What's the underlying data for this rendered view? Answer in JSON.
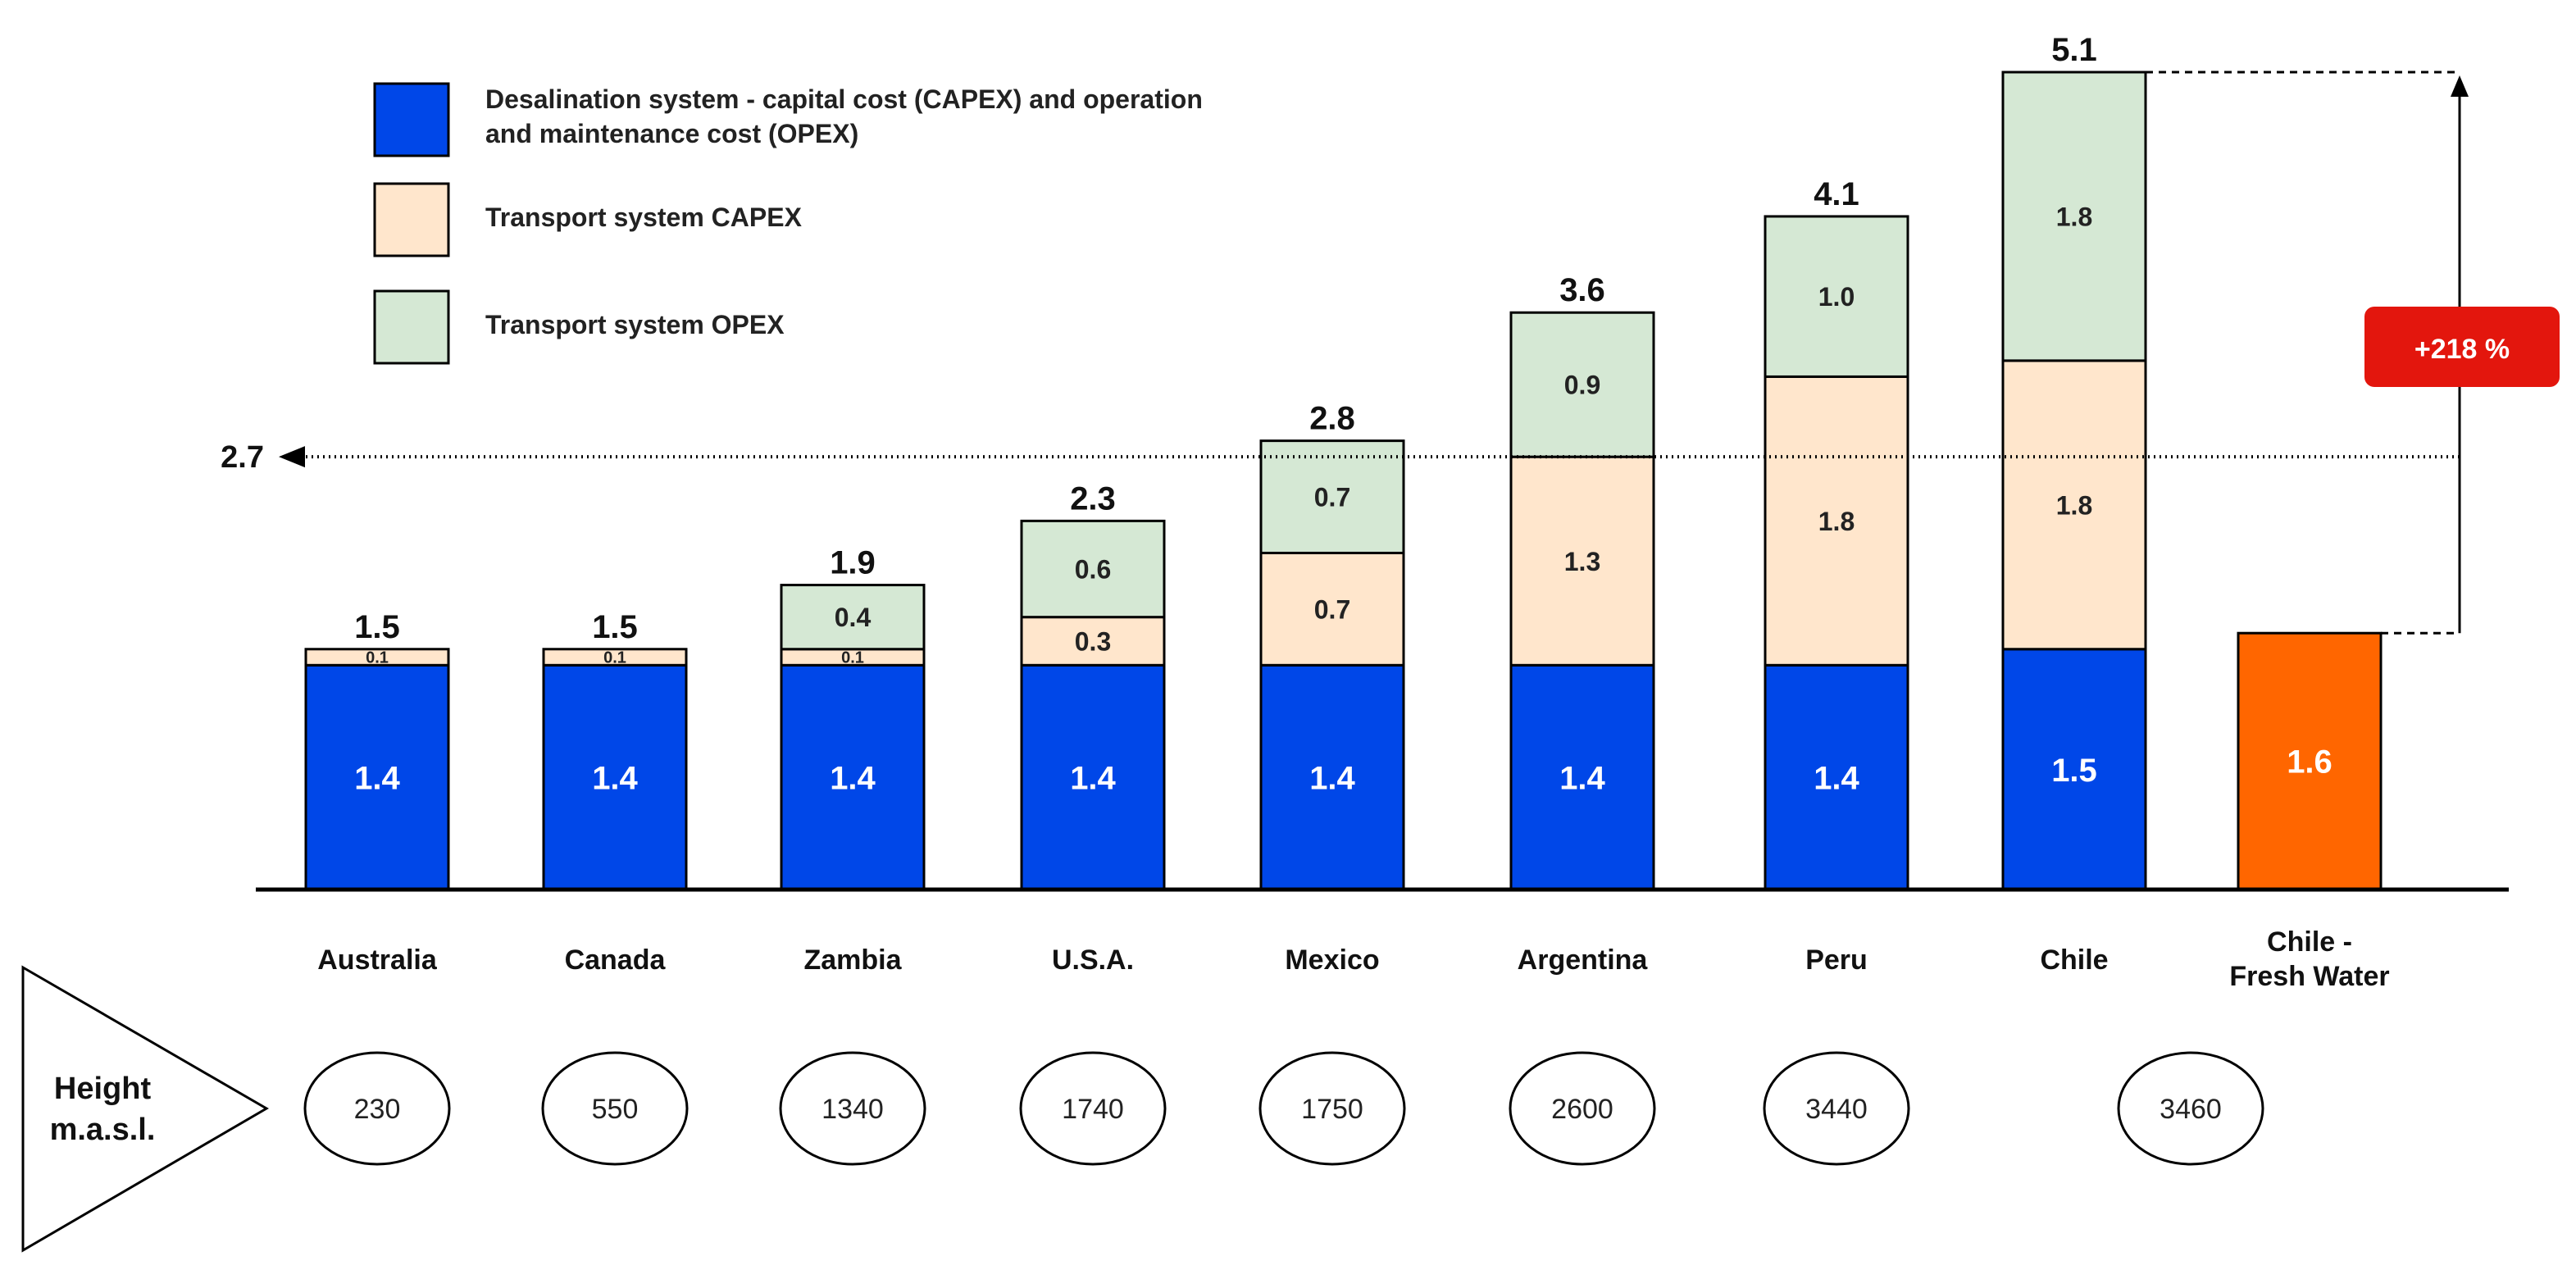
{
  "chart_data": {
    "type": "bar",
    "stacked": true,
    "title": "",
    "xlabel": "",
    "ylabel": "",
    "ylim": [
      0,
      5.1
    ],
    "grid": false,
    "legend_position": "top-left",
    "categories": [
      "Australia",
      "Canada",
      "Zambia",
      "U.S.A.",
      "Mexico",
      "Argentina",
      "Peru",
      "Chile"
    ],
    "series": [
      {
        "name": "Desalination system - capital cost (CAPEX) and operation and maintenance cost (OPEX)",
        "color": "#0047e8",
        "values": [
          1.4,
          1.4,
          1.4,
          1.4,
          1.4,
          1.4,
          1.4,
          1.5
        ],
        "labels": [
          "1.4",
          "1.4",
          "1.4",
          "1.4",
          "1.4",
          "1.4",
          "1.4",
          "1.5"
        ]
      },
      {
        "name": "Transport system CAPEX",
        "color": "#ffe6cc",
        "values": [
          0.1,
          0.1,
          0.1,
          0.3,
          0.7,
          1.3,
          1.8,
          1.8
        ],
        "labels": [
          "0.1",
          "0.1",
          "0.1",
          "0.3",
          "0.7",
          "1.3",
          "1.8",
          "1.8"
        ]
      },
      {
        "name": "Transport system OPEX",
        "color": "#d5e8d4",
        "values": [
          0,
          0,
          0.4,
          0.6,
          0.7,
          0.9,
          1.0,
          1.8
        ],
        "labels": [
          "",
          "",
          "0.4",
          "0.6",
          "0.7",
          "0.9",
          "1.0",
          "1.8"
        ]
      }
    ],
    "totals": [
      "1.5",
      "1.5",
      "1.9",
      "2.3",
      "2.8",
      "3.6",
      "4.1",
      "5.1"
    ],
    "fresh_water": {
      "label_line1": "Chile -",
      "label_line2": "Fresh Water",
      "value": 1.6,
      "value_label": "1.6",
      "color": "#ff6600"
    },
    "reference_line": {
      "value": 2.7,
      "label": "2.7"
    },
    "increase_annotation": {
      "label": "+218 %",
      "color": "#e3160d"
    },
    "legend_lines": [
      [
        "Desalination system - capital cost (CAPEX) and operation",
        "and maintenance cost (OPEX)"
      ],
      [
        "Transport system CAPEX"
      ],
      [
        "Transport system OPEX"
      ]
    ],
    "heights": {
      "label_line1": "Height",
      "label_line2": "m.a.s.l.",
      "values": [
        "230",
        "550",
        "1340",
        "1740",
        "1750",
        "2600",
        "3440",
        "3460"
      ]
    }
  }
}
